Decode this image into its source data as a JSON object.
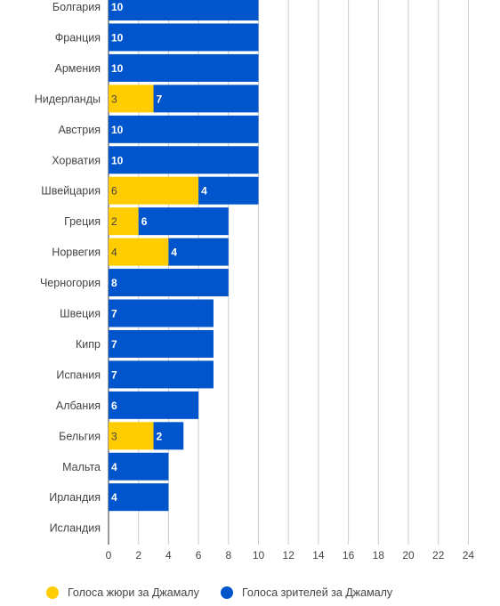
{
  "chart_data": {
    "type": "bar",
    "orientation": "horizontal",
    "stacked": true,
    "categories": [
      "Болгария",
      "Франция",
      "Армения",
      "Нидерланды",
      "Австрия",
      "Хорватия",
      "Швейцария",
      "Греция",
      "Норвегия",
      "Черногория",
      "Швеция",
      "Кипр",
      "Испания",
      "Албания",
      "Бельгия",
      "Мальта",
      "Ирландия",
      "Исландия"
    ],
    "series": [
      {
        "name": "Голоса жюри за Джамалу",
        "color": "#FFCC00",
        "label_color": "#444444",
        "values": [
          0,
          0,
          0,
          3,
          0,
          0,
          6,
          2,
          4,
          0,
          0,
          0,
          0,
          0,
          3,
          0,
          0,
          0
        ]
      },
      {
        "name": "Голоса зрителей за Джамалу",
        "color": "#0055CC",
        "label_color": "#ffffff",
        "values": [
          10,
          10,
          10,
          7,
          10,
          10,
          4,
          6,
          4,
          8,
          7,
          7,
          7,
          6,
          2,
          4,
          4,
          0
        ]
      }
    ],
    "xlim": [
      0,
      24
    ],
    "xticks": [
      0,
      2,
      4,
      6,
      8,
      10,
      12,
      14,
      16,
      18,
      20,
      22,
      24
    ],
    "grid": true,
    "legend_position": "bottom"
  }
}
